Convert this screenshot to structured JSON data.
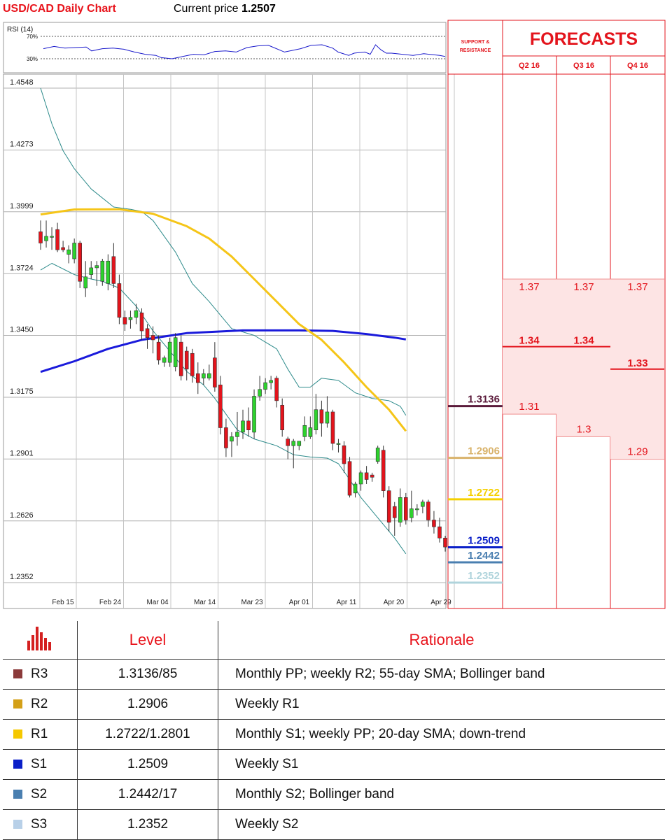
{
  "header": {
    "title": "USD/CAD Daily Chart",
    "price_label": "Current price",
    "price_value": "1.2507"
  },
  "rsi": {
    "label": "RSI (14)",
    "levels": [
      "70%",
      "30%"
    ]
  },
  "panel": {
    "sr_label_line1": "SUPPORT &",
    "sr_label_line2": "RESISTANCE",
    "forecasts_title": "FORECASTS",
    "quarters": [
      "Q2 16",
      "Q3 16",
      "Q4 16"
    ]
  },
  "colors": {
    "up": "#2dd22d",
    "down": "#e3141c",
    "sma20": "#f5c518",
    "sma55_200": "#1a1adb",
    "band": "#2e8b8b",
    "r3": "#5a1a3a",
    "r2": "#d9b36b",
    "r1": "#f5d000",
    "s1": "#0a1fc8",
    "s2": "#4a7fb0",
    "s3": "#b0d4dc"
  },
  "chart_data": {
    "type": "candlestick",
    "ylim": [
      1.2352,
      1.4548
    ],
    "y_ticks": [
      "1.4548",
      "1.4273",
      "1.3999",
      "1.3724",
      "1.3450",
      "1.3175",
      "1.2901",
      "1.2626",
      "1.2352"
    ],
    "x_ticks": [
      "Feb 15",
      "Feb 24",
      "Mar 04",
      "Mar 14",
      "Mar 23",
      "Apr 01",
      "Apr 11",
      "Apr 20",
      "Apr 29"
    ],
    "candles": [
      [
        1.391,
        1.396,
        1.383,
        1.386
      ],
      [
        1.387,
        1.396,
        1.384,
        1.389
      ],
      [
        1.389,
        1.393,
        1.383,
        1.389
      ],
      [
        1.392,
        1.395,
        1.382,
        1.383
      ],
      [
        1.384,
        1.387,
        1.382,
        1.383
      ],
      [
        1.381,
        1.385,
        1.377,
        1.383
      ],
      [
        1.379,
        1.388,
        1.377,
        1.386
      ],
      [
        1.386,
        1.387,
        1.366,
        1.369
      ],
      [
        1.366,
        1.378,
        1.362,
        1.371
      ],
      [
        1.372,
        1.378,
        1.37,
        1.375
      ],
      [
        1.375,
        1.378,
        1.367,
        1.376
      ],
      [
        1.369,
        1.379,
        1.367,
        1.378
      ],
      [
        1.368,
        1.381,
        1.365,
        1.378
      ],
      [
        1.38,
        1.386,
        1.366,
        1.368
      ],
      [
        1.368,
        1.372,
        1.35,
        1.353
      ],
      [
        1.353,
        1.356,
        1.347,
        1.35
      ],
      [
        1.352,
        1.356,
        1.348,
        1.353
      ],
      [
        1.353,
        1.359,
        1.35,
        1.356
      ],
      [
        1.355,
        1.357,
        1.343,
        1.347
      ],
      [
        1.348,
        1.35,
        1.339,
        1.344
      ],
      [
        1.345,
        1.349,
        1.337,
        1.343
      ],
      [
        1.342,
        1.345,
        1.332,
        1.334
      ],
      [
        1.333,
        1.336,
        1.331,
        1.335
      ],
      [
        1.333,
        1.344,
        1.331,
        1.342
      ],
      [
        1.331,
        1.346,
        1.329,
        1.344
      ],
      [
        1.342,
        1.345,
        1.325,
        1.327
      ],
      [
        1.338,
        1.34,
        1.325,
        1.33
      ],
      [
        1.337,
        1.339,
        1.324,
        1.327
      ],
      [
        1.328,
        1.333,
        1.319,
        1.324
      ],
      [
        1.326,
        1.33,
        1.323,
        1.328
      ],
      [
        1.326,
        1.332,
        1.325,
        1.328
      ],
      [
        1.335,
        1.342,
        1.32,
        1.322
      ],
      [
        1.323,
        1.327,
        1.301,
        1.304
      ],
      [
        1.304,
        1.308,
        1.291,
        1.295
      ],
      [
        1.298,
        1.302,
        1.291,
        1.3
      ],
      [
        1.3,
        1.311,
        1.296,
        1.302
      ],
      [
        1.302,
        1.312,
        1.299,
        1.307
      ],
      [
        1.307,
        1.313,
        1.3,
        1.303
      ],
      [
        1.302,
        1.321,
        1.299,
        1.318
      ],
      [
        1.318,
        1.327,
        1.316,
        1.321
      ],
      [
        1.321,
        1.326,
        1.319,
        1.324
      ],
      [
        1.324,
        1.327,
        1.321,
        1.325
      ],
      [
        1.326,
        1.327,
        1.313,
        1.316
      ],
      [
        1.314,
        1.317,
        1.3,
        1.303
      ],
      [
        1.299,
        1.3,
        1.29,
        1.296
      ],
      [
        1.296,
        1.299,
        1.286,
        1.298
      ],
      [
        1.296,
        1.298,
        1.294,
        1.298
      ],
      [
        1.3,
        1.309,
        1.298,
        1.305
      ],
      [
        1.3,
        1.309,
        1.299,
        1.304
      ],
      [
        1.303,
        1.319,
        1.301,
        1.312
      ],
      [
        1.312,
        1.316,
        1.3,
        1.306
      ],
      [
        1.306,
        1.318,
        1.304,
        1.311
      ],
      [
        1.311,
        1.312,
        1.294,
        1.297
      ],
      [
        1.297,
        1.299,
        1.293,
        1.297
      ],
      [
        1.296,
        1.298,
        1.284,
        1.288
      ],
      [
        1.289,
        1.291,
        1.273,
        1.274
      ],
      [
        1.275,
        1.28,
        1.273,
        1.279
      ],
      [
        1.279,
        1.285,
        1.276,
        1.284
      ],
      [
        1.284,
        1.287,
        1.279,
        1.281
      ],
      [
        1.283,
        1.284,
        1.28,
        1.282
      ],
      [
        1.289,
        1.296,
        1.288,
        1.295
      ],
      [
        1.294,
        1.296,
        1.273,
        1.276
      ],
      [
        1.276,
        1.278,
        1.258,
        1.262
      ],
      [
        1.269,
        1.271,
        1.256,
        1.264
      ],
      [
        1.262,
        1.277,
        1.26,
        1.273
      ],
      [
        1.273,
        1.275,
        1.261,
        1.263
      ],
      [
        1.264,
        1.276,
        1.262,
        1.268
      ],
      [
        1.268,
        1.27,
        1.265,
        1.268
      ],
      [
        1.269,
        1.272,
        1.266,
        1.271
      ],
      [
        1.271,
        1.272,
        1.26,
        1.263
      ],
      [
        1.263,
        1.267,
        1.257,
        1.26
      ],
      [
        1.26,
        1.264,
        1.253,
        1.255
      ],
      [
        1.255,
        1.256,
        1.249,
        1.251
      ]
    ],
    "sma20": [
      [
        0,
        1.3987
      ],
      [
        6,
        1.4009
      ],
      [
        14,
        1.401
      ],
      [
        20,
        1.399
      ],
      [
        26,
        1.3935
      ],
      [
        30,
        1.388
      ],
      [
        34,
        1.38
      ],
      [
        38,
        1.37
      ],
      [
        42,
        1.36
      ],
      [
        46,
        1.35
      ],
      [
        50,
        1.343
      ],
      [
        54,
        1.333
      ],
      [
        58,
        1.322
      ],
      [
        62,
        1.312
      ],
      [
        65,
        1.3025
      ]
    ],
    "sma200": [
      [
        0,
        1.3288
      ],
      [
        6,
        1.3335
      ],
      [
        12,
        1.339
      ],
      [
        18,
        1.343
      ],
      [
        26,
        1.346
      ],
      [
        36,
        1.3472
      ],
      [
        46,
        1.3472
      ],
      [
        52,
        1.347
      ],
      [
        58,
        1.3456
      ],
      [
        63,
        1.344
      ],
      [
        65,
        1.3432
      ]
    ],
    "bollinger_upper": [
      [
        0,
        1.4548
      ],
      [
        2,
        1.439
      ],
      [
        4,
        1.427
      ],
      [
        6,
        1.419
      ],
      [
        9,
        1.41
      ],
      [
        13,
        1.402
      ],
      [
        16,
        1.401
      ],
      [
        18,
        1.4
      ],
      [
        20,
        1.396
      ],
      [
        24,
        1.382
      ],
      [
        27,
        1.368
      ],
      [
        30,
        1.36
      ],
      [
        34,
        1.348
      ],
      [
        38,
        1.345
      ],
      [
        42,
        1.339
      ],
      [
        44,
        1.33
      ],
      [
        46,
        1.322
      ],
      [
        48,
        1.322
      ],
      [
        50,
        1.326
      ],
      [
        53,
        1.325
      ],
      [
        56,
        1.3195
      ],
      [
        59,
        1.317
      ],
      [
        62,
        1.316
      ],
      [
        64,
        1.3135
      ],
      [
        65,
        1.3095
      ]
    ],
    "bollinger_lower": [
      [
        0,
        1.374
      ],
      [
        2,
        1.377
      ],
      [
        4,
        1.3745
      ],
      [
        6,
        1.372
      ],
      [
        9,
        1.37
      ],
      [
        11,
        1.369
      ],
      [
        14,
        1.366
      ],
      [
        17,
        1.358
      ],
      [
        20,
        1.347
      ],
      [
        23,
        1.338
      ],
      [
        26,
        1.329
      ],
      [
        29,
        1.323
      ],
      [
        31,
        1.317
      ],
      [
        33,
        1.31
      ],
      [
        35,
        1.303
      ],
      [
        38,
        1.299
      ],
      [
        42,
        1.296
      ],
      [
        45,
        1.292
      ],
      [
        48,
        1.291
      ],
      [
        51,
        1.2905
      ],
      [
        53,
        1.288
      ],
      [
        55,
        1.281
      ],
      [
        57,
        1.273
      ],
      [
        59,
        1.267
      ],
      [
        61,
        1.261
      ],
      [
        63,
        1.255
      ],
      [
        65,
        1.248
      ]
    ],
    "rsi_series": [
      [
        0,
        48
      ],
      [
        2,
        52
      ],
      [
        4,
        49
      ],
      [
        6,
        50
      ],
      [
        8,
        51
      ],
      [
        9,
        44
      ],
      [
        11,
        48
      ],
      [
        13,
        49
      ],
      [
        15,
        47
      ],
      [
        17,
        42
      ],
      [
        19,
        38
      ],
      [
        21,
        36
      ],
      [
        22,
        32
      ],
      [
        24,
        30
      ],
      [
        26,
        34
      ],
      [
        28,
        38
      ],
      [
        30,
        37
      ],
      [
        32,
        43
      ],
      [
        34,
        44
      ],
      [
        36,
        42
      ],
      [
        38,
        50
      ],
      [
        40,
        53
      ],
      [
        42,
        54
      ],
      [
        43,
        50
      ],
      [
        45,
        42
      ],
      [
        47,
        46
      ],
      [
        48,
        48
      ],
      [
        50,
        54
      ],
      [
        52,
        55
      ],
      [
        54,
        49
      ],
      [
        55,
        42
      ],
      [
        57,
        36
      ],
      [
        58,
        40
      ],
      [
        60,
        42
      ],
      [
        61,
        38
      ],
      [
        62,
        55
      ],
      [
        63,
        46
      ],
      [
        64,
        40
      ],
      [
        65,
        40
      ],
      [
        67,
        38
      ],
      [
        69,
        36
      ],
      [
        71,
        39
      ],
      [
        72,
        38
      ],
      [
        74,
        36
      ],
      [
        75,
        34
      ]
    ]
  },
  "support_resistance": [
    {
      "id": "r3",
      "value": "1.3136"
    },
    {
      "id": "r2",
      "value": "1.2906"
    },
    {
      "id": "r1",
      "value": "1.2722"
    },
    {
      "id": "s1",
      "value": "1.2509"
    },
    {
      "id": "s2",
      "value": "1.2442"
    },
    {
      "id": "s3",
      "value": "1.2352"
    }
  ],
  "forecasts": [
    {
      "quarter": "Q2 16",
      "high": "1.37",
      "mid": "1.34",
      "low": "1.31",
      "high_v": 1.37,
      "mid_v": 1.34,
      "low_v": 1.31
    },
    {
      "quarter": "Q3 16",
      "high": "1.37",
      "mid": "1.34",
      "low": "1.3",
      "high_v": 1.37,
      "mid_v": 1.34,
      "low_v": 1.3
    },
    {
      "quarter": "Q4 16",
      "high": "1.37",
      "mid": "1.33",
      "low": "1.29",
      "high_v": 1.37,
      "mid_v": 1.33,
      "low_v": 1.29
    }
  ],
  "table": {
    "headers": {
      "level": "Level",
      "rationale": "Rationale"
    },
    "rows": [
      {
        "id": "r3",
        "name": "R3",
        "level": "1.3136/85",
        "rationale": "Monthly PP; weekly R2; 55-day SMA; Bollinger band",
        "color": "#8b3a3a"
      },
      {
        "id": "r2",
        "name": "R2",
        "level": "1.2906",
        "rationale": "Weekly R1",
        "color": "#d4a017"
      },
      {
        "id": "r1",
        "name": "R1",
        "level": "1.2722/1.2801",
        "rationale": "Monthly S1; weekly PP; 20-day SMA; down-trend",
        "color": "#f5c800"
      },
      {
        "id": "s1",
        "name": "S1",
        "level": "1.2509",
        "rationale": "Weekly S1",
        "color": "#0a1fc8"
      },
      {
        "id": "s2",
        "name": "S2",
        "level": "1.2442/17",
        "rationale": "Monthly S2; Bollinger band",
        "color": "#4a7fb0"
      },
      {
        "id": "s3",
        "name": "S3",
        "level": "1.2352",
        "rationale": "Weekly S2",
        "color": "#b8d0e8"
      }
    ]
  }
}
